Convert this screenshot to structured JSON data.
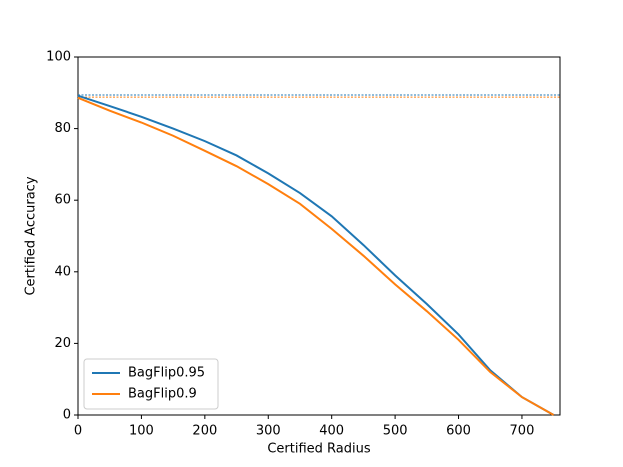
{
  "chart_data": {
    "type": "line",
    "xlabel": "Certified Radius",
    "ylabel": "Certified Accuracy",
    "x": [
      0,
      50,
      100,
      150,
      200,
      250,
      300,
      350,
      400,
      450,
      500,
      550,
      600,
      650,
      700,
      750
    ],
    "series": [
      {
        "name": "BagFlip0.95",
        "color": "#1f77b4",
        "values": [
          89.2,
          86.3,
          83.3,
          80,
          76.5,
          72.5,
          67.5,
          62,
          55.5,
          47.5,
          39,
          31,
          22.5,
          12.5,
          5,
          0
        ]
      },
      {
        "name": "BagFlip0.9",
        "color": "#ff7f0e",
        "values": [
          88.6,
          85,
          81.7,
          78,
          73.8,
          69.5,
          64.5,
          59,
          52,
          44.5,
          36.5,
          29,
          21,
          12,
          5,
          0
        ]
      }
    ],
    "hlines": [
      {
        "color": "#1f77b4",
        "value": 89.4
      },
      {
        "color": "#ff7f0e",
        "value": 88.8
      }
    ],
    "xlim": [
      0,
      760
    ],
    "ylim": [
      0,
      100
    ],
    "xticks": [
      0,
      100,
      200,
      300,
      400,
      500,
      600,
      700
    ],
    "yticks": [
      0,
      20,
      40,
      60,
      80,
      100
    ],
    "legend": "lower left",
    "grid": false
  }
}
